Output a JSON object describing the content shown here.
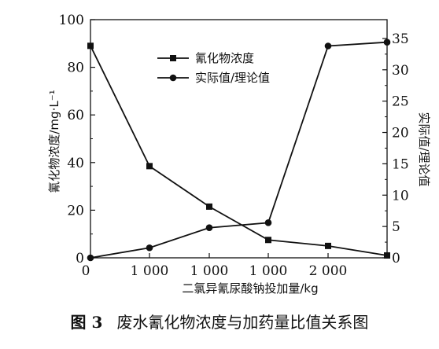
{
  "chart_data": {
    "type": "line",
    "categories": [
      "0",
      "1 000",
      "1 000",
      "1 000",
      "2 000",
      ""
    ],
    "xlabel": "二氯异氰尿酸钠投加量/kg",
    "ylabel_left": "氰化物浓度/mg·L⁻¹",
    "ylabel_right": "实际值/理论值",
    "ylim_left": [
      0,
      100
    ],
    "ylim_right": [
      0,
      38
    ],
    "yticks_left": [
      0,
      20,
      40,
      60,
      80,
      100
    ],
    "yticks_right": [
      0,
      5,
      10,
      15,
      20,
      25,
      30,
      35
    ],
    "legend_position": "top-center",
    "series": [
      {
        "name": "氰化物浓度",
        "marker": "square",
        "axis": "left",
        "values": [
          89,
          38.5,
          21.5,
          7.5,
          5,
          1
        ]
      },
      {
        "name": "实际值/理论值",
        "marker": "circle",
        "axis": "right",
        "values": [
          0,
          1.6,
          4.8,
          5.6,
          33.8,
          34.4
        ]
      }
    ]
  },
  "caption": {
    "figure_number": "图 3",
    "text": "废水氰化物浓度与加药量比值关系图"
  }
}
